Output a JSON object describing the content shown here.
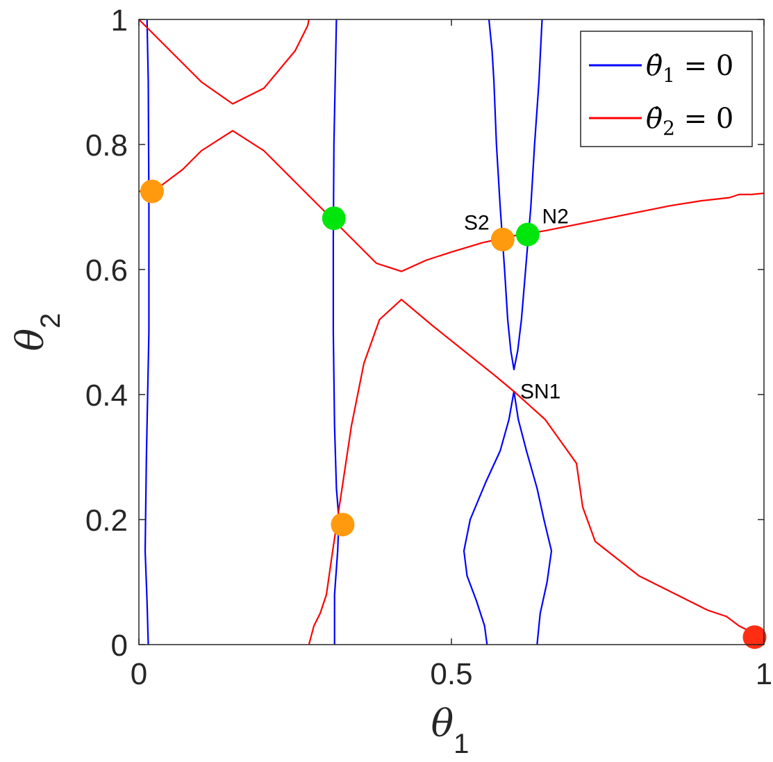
{
  "chart_data": {
    "type": "line",
    "xlim": [
      0,
      1
    ],
    "ylim": [
      0,
      1
    ],
    "xticks": [
      "0",
      "0.5",
      "1"
    ],
    "yticks": [
      "0",
      "0.2",
      "0.4",
      "0.6",
      "0.8",
      "1"
    ],
    "xlabel": {
      "symbol": "θ",
      "subscript": "1"
    },
    "ylabel": {
      "symbol": "θ",
      "subscript": "2"
    },
    "grid": false,
    "legend_position": "top-right",
    "series": [
      {
        "name": "θ̇1 = 0",
        "name_symbol": "θ̇",
        "name_subscript": "1",
        "name_rest": " = 0",
        "color": "#0000ff",
        "segments": [
          [
            [
              0.015,
              0
            ],
            [
              0.013,
              0.07
            ],
            [
              0.01,
              0.15
            ],
            [
              0.012,
              0.3
            ],
            [
              0.016,
              0.5
            ],
            [
              0.016,
              0.7
            ],
            [
              0.015,
              0.9
            ],
            [
              0.013,
              1.0
            ]
          ],
          [
            [
              0.313,
              0
            ],
            [
              0.313,
              0.08
            ],
            [
              0.318,
              0.15
            ],
            [
              0.32,
              0.2
            ],
            [
              0.316,
              0.25
            ],
            [
              0.313,
              0.35
            ],
            [
              0.311,
              0.5
            ],
            [
              0.311,
              0.65
            ],
            [
              0.312,
              0.8
            ],
            [
              0.314,
              0.9
            ],
            [
              0.315,
              0.95
            ],
            [
              0.316,
              1.0
            ]
          ],
          [
            [
              0.557,
              0
            ],
            [
              0.553,
              0.03
            ],
            [
              0.54,
              0.07
            ],
            [
              0.525,
              0.11
            ],
            [
              0.52,
              0.15
            ],
            [
              0.53,
              0.2
            ],
            [
              0.555,
              0.26
            ],
            [
              0.578,
              0.31
            ],
            [
              0.592,
              0.36
            ],
            [
              0.6,
              0.405
            ],
            [
              0.607,
              0.36
            ],
            [
              0.62,
              0.31
            ],
            [
              0.637,
              0.25
            ],
            [
              0.648,
              0.2
            ],
            [
              0.66,
              0.15
            ],
            [
              0.653,
              0.1
            ],
            [
              0.642,
              0.05
            ],
            [
              0.637,
              0
            ]
          ],
          [
            [
              0.56,
              1.0
            ],
            [
              0.565,
              0.95
            ],
            [
              0.568,
              0.9
            ],
            [
              0.572,
              0.8
            ],
            [
              0.578,
              0.7
            ],
            [
              0.585,
              0.6
            ],
            [
              0.59,
              0.52
            ],
            [
              0.595,
              0.47
            ],
            [
              0.6,
              0.44
            ],
            [
              0.606,
              0.47
            ],
            [
              0.612,
              0.52
            ],
            [
              0.617,
              0.58
            ],
            [
              0.622,
              0.64
            ],
            [
              0.627,
              0.7
            ],
            [
              0.633,
              0.8
            ],
            [
              0.64,
              0.9
            ],
            [
              0.645,
              1.0
            ]
          ]
        ]
      },
      {
        "name": "θ̇2 = 0",
        "name_symbol": "θ̇",
        "name_subscript": "2",
        "name_rest": " = 0",
        "color": "#ff0000",
        "segments": [
          [
            [
              0,
              1.0
            ],
            [
              0.05,
              0.95
            ],
            [
              0.1,
              0.9
            ],
            [
              0.15,
              0.865
            ],
            [
              0.2,
              0.89
            ],
            [
              0.25,
              0.95
            ],
            [
              0.27,
              0.99
            ],
            [
              0.272,
              1.0
            ]
          ],
          [
            [
              0,
              0.725
            ],
            [
              0.03,
              0.73
            ],
            [
              0.07,
              0.76
            ],
            [
              0.1,
              0.79
            ],
            [
              0.15,
              0.822
            ],
            [
              0.2,
              0.79
            ],
            [
              0.25,
              0.74
            ],
            [
              0.3,
              0.69
            ],
            [
              0.35,
              0.64
            ],
            [
              0.38,
              0.61
            ],
            [
              0.42,
              0.597
            ],
            [
              0.46,
              0.615
            ],
            [
              0.5,
              0.628
            ],
            [
              0.55,
              0.643
            ],
            [
              0.6,
              0.654
            ],
            [
              0.65,
              0.662
            ],
            [
              0.7,
              0.672
            ],
            [
              0.75,
              0.682
            ],
            [
              0.8,
              0.692
            ],
            [
              0.85,
              0.702
            ],
            [
              0.9,
              0.71
            ],
            [
              0.945,
              0.715
            ],
            [
              0.96,
              0.72
            ],
            [
              0.98,
              0.72
            ],
            [
              1.0,
              0.722
            ]
          ],
          [
            [
              0.272,
              0
            ],
            [
              0.28,
              0.03
            ],
            [
              0.29,
              0.05
            ],
            [
              0.3,
              0.08
            ],
            [
              0.31,
              0.15
            ],
            [
              0.325,
              0.25
            ],
            [
              0.34,
              0.35
            ],
            [
              0.36,
              0.45
            ],
            [
              0.385,
              0.52
            ],
            [
              0.42,
              0.552
            ],
            [
              0.47,
              0.51
            ],
            [
              0.52,
              0.47
            ],
            [
              0.57,
              0.43
            ],
            [
              0.6,
              0.405
            ],
            [
              0.65,
              0.36
            ],
            [
              0.7,
              0.29
            ],
            [
              0.71,
              0.22
            ],
            [
              0.73,
              0.165
            ],
            [
              0.8,
              0.11
            ],
            [
              0.87,
              0.075
            ],
            [
              0.91,
              0.055
            ],
            [
              0.94,
              0.045
            ],
            [
              0.96,
              0.03
            ],
            [
              0.99,
              0.015
            ],
            [
              1.0,
              0.01
            ]
          ]
        ]
      }
    ],
    "markers": [
      {
        "x": 0.021,
        "y": 0.725,
        "color": "#ff9a0e"
      },
      {
        "x": 0.312,
        "y": 0.682,
        "color": "#00e60c"
      },
      {
        "x": 0.326,
        "y": 0.192,
        "color": "#ff9a0e"
      },
      {
        "x": 0.582,
        "y": 0.648,
        "color": "#ff9a0e"
      },
      {
        "x": 0.622,
        "y": 0.656,
        "color": "#00e60c"
      },
      {
        "x": 0.985,
        "y": 0.012,
        "color": "#ff2d12"
      }
    ],
    "annotations": [
      {
        "text": "S2",
        "x": 0.52,
        "y": 0.675
      },
      {
        "text": "N2",
        "x": 0.645,
        "y": 0.685
      },
      {
        "text": "SN1",
        "x": 0.61,
        "y": 0.405
      }
    ]
  }
}
